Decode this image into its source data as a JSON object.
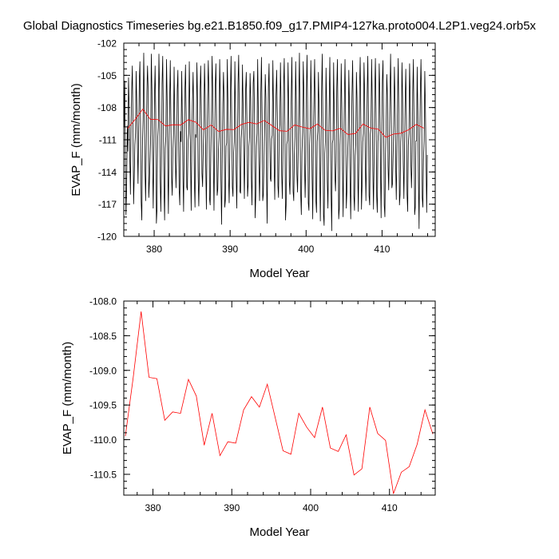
{
  "title": "Global Diagnostics Timeseries bg.e21.B1850.f09_g17.PMIP4-127ka.proto004.L2P1.veg24.orb5x",
  "chart_data": [
    {
      "type": "line",
      "xlabel": "Model Year",
      "ylabel": "EVAP_F (mm/month)",
      "xlim": [
        376,
        417
      ],
      "ylim": [
        -120,
        -102
      ],
      "xticks": [
        380,
        390,
        400,
        410
      ],
      "yticks": [
        -120,
        -117,
        -114,
        -111,
        -108,
        -105,
        -102
      ],
      "ytick_labels": [
        "-120",
        "-117",
        "-114",
        "-111",
        "-108",
        "-105",
        "-102"
      ],
      "series": [
        {
          "color": "#000000",
          "monthly": [
            -109.8,
            -105.5,
            -113.5,
            -118,
            -115.3,
            -109.7,
            -112.1,
            -105.2,
            -107.9,
            -112.7,
            -116.1,
            -109.9,
            -106.4,
            -104.1,
            -109.2,
            -117,
            -114.5,
            -111.5,
            -110.4,
            -104.6,
            -107.5,
            -111.4,
            -115.1,
            -110.2,
            -105.5,
            -103.7,
            -110.1,
            -116.8,
            -118.5,
            -111.5,
            -109.2,
            -102.9,
            -107.2,
            -113.7,
            -116.7,
            -111.7,
            -106.6,
            -104.1,
            -106.4,
            -116.4,
            -114.9,
            -112.8,
            -110.5,
            -103,
            -106.4,
            -112.7,
            -117.4,
            -112.4,
            -106.9,
            -104.1,
            -108.7,
            -118.8,
            -117.5,
            -111,
            -109.8,
            -103,
            -106.5,
            -114.5,
            -117.7,
            -113.4,
            -105.8,
            -103.2,
            -108.6,
            -115.3,
            -118.5,
            -111.8,
            -110.7,
            -103.5,
            -107.3,
            -113.5,
            -117.9,
            -111.3,
            -107.2,
            -103.6,
            -109.6,
            -114.5,
            -116.2,
            -112.2,
            -110.5,
            -104.2,
            -108.8,
            -112.9,
            -115.5,
            -111.9,
            -106.3,
            -104.5,
            -110.6,
            -115.7,
            -117.1,
            -110.2,
            -111.2,
            -104.6,
            -108.9,
            -114.4,
            -117.7,
            -110.9,
            -106.6,
            -104,
            -108.6,
            -115.4,
            -115.7,
            -111.2,
            -110.4,
            -103.7,
            -108.3,
            -113.1,
            -117.6,
            -111.2,
            -107.4,
            -104.7,
            -108.5,
            -114.9,
            -117.3,
            -110.5,
            -110.8,
            -103.8,
            -107.1,
            -114.4,
            -117.2,
            -113.7,
            -106.6,
            -104.1,
            -107.8,
            -114.1,
            -115.4,
            -111.9,
            -109.8,
            -103.9,
            -106.9,
            -113.5,
            -117.5,
            -111.4,
            -107.1,
            -103.6,
            -106.6,
            -116.5,
            -117.1,
            -112.3,
            -109,
            -103.2,
            -106.2,
            -112.7,
            -117.6,
            -111.8,
            -106.1,
            -103.9,
            -108.6,
            -116.2,
            -115.6,
            -112.1,
            -110.7,
            -103.5,
            -107,
            -114.8,
            -118.9,
            -112.9,
            -107.6,
            -104.7,
            -107.4,
            -117.3,
            -116.6,
            -111.6,
            -111.3,
            -103.5,
            -107.3,
            -114.4,
            -116.9,
            -112.5,
            -106.6,
            -103.2,
            -108.9,
            -115.4,
            -116.3,
            -112.3,
            -111.2,
            -103.7,
            -108.5,
            -114.1,
            -117.4,
            -112.1,
            -105.8,
            -103.1,
            -108.5,
            -115.8,
            -116,
            -110.9,
            -109.9,
            -104,
            -107.8,
            -111.9,
            -116.5,
            -111.7,
            -106.3,
            -104.7,
            -109.2,
            -116.3,
            -115.2,
            -111.7,
            -110.8,
            -104.8,
            -107.2,
            -114.5,
            -117.1,
            -111.8,
            -105.7,
            -104.6,
            -108.6,
            -118.3,
            -116.3,
            -111.6,
            -110.4,
            -103.5,
            -108.3,
            -113.3,
            -116.7,
            -113,
            -106.6,
            -103.3,
            -108.7,
            -116.7,
            -116.1,
            -112.8,
            -109.8,
            -104.9,
            -107.1,
            -114.6,
            -118.8,
            -111.4,
            -106.1,
            -103.9,
            -110,
            -114.6,
            -114.9,
            -110.9,
            -110.6,
            -103.6,
            -107.9,
            -113.2,
            -116.6,
            -110.5,
            -106.8,
            -104.5,
            -108.5,
            -115.3,
            -116.4,
            -110.5,
            -109.6,
            -103.8,
            -107.6,
            -114.3,
            -116.5,
            -111.5,
            -105.9,
            -103.4,
            -109.6,
            -118.5,
            -117.1,
            -111.4,
            -111.1,
            -103.8,
            -107.6,
            -114.9,
            -116.1,
            -112.1,
            -107.2,
            -103.3,
            -108.7,
            -115.8,
            -116.7,
            -112.4,
            -110.7,
            -103.7,
            -107.5,
            -114.2,
            -115.9,
            -112.2,
            -106.9,
            -102.9,
            -110,
            -116.1,
            -118,
            -112.2,
            -110.3,
            -103.7,
            -106.5,
            -113.1,
            -116.4,
            -113.1,
            -106.4,
            -103.1,
            -108.2,
            -116.9,
            -117.6,
            -111.6,
            -110,
            -103.6,
            -107.6,
            -114.4,
            -118.4,
            -110.8,
            -106.9,
            -103.5,
            -108.9,
            -116.7,
            -117.8,
            -111.2,
            -110.2,
            -104.7,
            -108,
            -113.7,
            -118.6,
            -112.6,
            -106.5,
            -103,
            -109.1,
            -118,
            -119,
            -112.3,
            -111.1,
            -104.3,
            -107.7,
            -114.9,
            -117.4,
            -112.2,
            -107.6,
            -103.3,
            -109.1,
            -116,
            -119.5,
            -111.3,
            -111,
            -103.8,
            -108.5,
            -114.3,
            -115.8,
            -113,
            -106.1,
            -103.5,
            -109.7,
            -118.4,
            -117.4,
            -111.5,
            -109.6,
            -103.9,
            -108.2,
            -113.9,
            -118.2,
            -111.7,
            -107.2,
            -103.5,
            -109.3,
            -117.4,
            -115.8,
            -112.8,
            -110.7,
            -104.5,
            -107.8,
            -115,
            -118.4,
            -112.4,
            -106.9,
            -103.6,
            -108.4,
            -116.2,
            -117.6,
            -112.5,
            -111.3,
            -104.7,
            -107.2,
            -113.8,
            -117.7,
            -112.3,
            -106.1,
            -103.3,
            -109.3,
            -117.5,
            -115.2,
            -111.2,
            -110.4,
            -103.8,
            -106.7,
            -112.9,
            -116.7,
            -112.4,
            -106.7,
            -103.2,
            -108.5,
            -116.2,
            -117.1,
            -110.5,
            -109.8,
            -103.5,
            -107.3,
            -113.9,
            -117.5,
            -112.4,
            -106.5,
            -103.4,
            -108.5,
            -116.3,
            -117.8,
            -111.2,
            -110,
            -103.9,
            -106.6,
            -113.5,
            -118.3,
            -111.5,
            -105.5,
            -103.6,
            -109.3,
            -117.1,
            -118.2,
            -112.3,
            -109.5,
            -104.9,
            -106.9,
            -113.4,
            -115.7,
            -111.6,
            -107,
            -103,
            -108.1,
            -115.5,
            -115.1,
            -112.4,
            -109.6,
            -104.2,
            -107.3,
            -113.4,
            -116.6,
            -112,
            -107.4,
            -103.4,
            -108.5,
            -117.1,
            -116.1,
            -111.2,
            -110,
            -103.8,
            -107.1,
            -113.2,
            -116.5,
            -111.8,
            -107.5,
            -104.4,
            -108.8,
            -116.1,
            -117.7,
            -111.5,
            -110.4,
            -103.9,
            -107.2,
            -113.1,
            -115.5,
            -112.7,
            -106.6,
            -103.5,
            -109.3,
            -118,
            -117.3,
            -111.1,
            -111.1,
            -104.2,
            -108.3,
            -114.9,
            -119.3,
            -111.1,
            -106.6,
            -103.5,
            -107.9,
            -116.4,
            -117.3,
            -112.8,
            -111.1,
            -104.6,
            -108,
            -112.8,
            -117.8,
            -112.4
          ]
        },
        {
          "color": "#ff0000",
          "x": [
            376.5,
            377.5,
            378.5,
            379.5,
            380.5,
            381.5,
            382.5,
            383.5,
            384.5,
            385.5,
            386.5,
            387.5,
            388.5,
            389.5,
            390.5,
            391.5,
            392.5,
            393.5,
            394.5,
            395.5,
            396.5,
            397.5,
            398.5,
            399.5,
            400.5,
            401.5,
            402.5,
            403.5,
            404.5,
            405.5,
            406.5,
            407.5,
            408.5,
            409.5,
            410.5,
            411.5,
            412.5,
            413.5,
            414.5,
            415.5
          ],
          "values": [
            -109.95,
            -109.1,
            -108.15,
            -109.1,
            -109.12,
            -109.72,
            -109.6,
            -109.62,
            -109.13,
            -109.37,
            -110.08,
            -109.62,
            -110.23,
            -110.03,
            -110.05,
            -109.57,
            -109.38,
            -109.53,
            -109.2,
            -109.68,
            -110.16,
            -110.21,
            -109.62,
            -109.82,
            -109.97,
            -109.53,
            -110.12,
            -110.17,
            -109.93,
            -110.51,
            -110.42,
            -109.53,
            -109.91,
            -110.01,
            -110.78,
            -110.47,
            -110.39,
            -110.07,
            -109.57,
            -109.92
          ]
        }
      ]
    },
    {
      "type": "line",
      "xlabel": "Model Year",
      "ylabel": "EVAP_F (mm/month)",
      "xlim": [
        376.3,
        415.8
      ],
      "ylim": [
        -110.8,
        -108
      ],
      "xticks": [
        380,
        390,
        400,
        410
      ],
      "yticks": [
        -110.5,
        -110,
        -109.5,
        -109,
        -108.5,
        -108
      ],
      "ytick_labels": [
        "-110.5",
        "-110.0",
        "-109.5",
        "-109.0",
        "-108.5",
        "-108.0"
      ],
      "series": [
        {
          "color": "#ff0000",
          "x": [
            376.5,
            377.5,
            378.5,
            379.5,
            380.5,
            381.5,
            382.5,
            383.5,
            384.5,
            385.5,
            386.5,
            387.5,
            388.5,
            389.5,
            390.5,
            391.5,
            392.5,
            393.5,
            394.5,
            395.5,
            396.5,
            397.5,
            398.5,
            399.5,
            400.5,
            401.5,
            402.5,
            403.5,
            404.5,
            405.5,
            406.5,
            407.5,
            408.5,
            409.5,
            410.5,
            411.5,
            412.5,
            413.5,
            414.5,
            415.5
          ],
          "values": [
            -109.95,
            -109.1,
            -108.15,
            -109.1,
            -109.12,
            -109.72,
            -109.6,
            -109.62,
            -109.13,
            -109.37,
            -110.08,
            -109.62,
            -110.23,
            -110.03,
            -110.05,
            -109.57,
            -109.38,
            -109.53,
            -109.2,
            -109.68,
            -110.16,
            -110.21,
            -109.62,
            -109.82,
            -109.97,
            -109.53,
            -110.12,
            -110.17,
            -109.93,
            -110.51,
            -110.42,
            -109.53,
            -109.91,
            -110.01,
            -110.78,
            -110.47,
            -110.39,
            -110.07,
            -109.57,
            -109.92
          ]
        }
      ]
    }
  ]
}
